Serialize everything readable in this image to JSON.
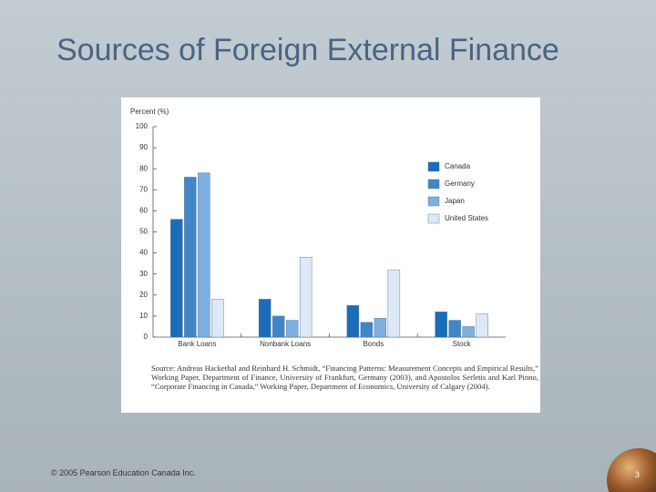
{
  "title": "Sources of Foreign External Finance",
  "footer": "© 2005 Pearson Education Canada Inc.",
  "page_number": "3",
  "chart_data": {
    "type": "bar",
    "y_label": "Percent (%)",
    "categories": [
      "Bank Loans",
      "Nonbank Loans",
      "Bonds",
      "Stock"
    ],
    "series": [
      {
        "name": "Canada",
        "color": "#1b6db8",
        "values": [
          56,
          18,
          15,
          12
        ]
      },
      {
        "name": "Germany",
        "color": "#3f87c8",
        "values": [
          76,
          10,
          7,
          8
        ]
      },
      {
        "name": "Japan",
        "color": "#7db0e0",
        "values": [
          78,
          8,
          9,
          5
        ]
      },
      {
        "name": "United States",
        "color": "#dde9f6",
        "values": [
          18,
          38,
          32,
          11
        ]
      }
    ],
    "ylim": [
      0,
      100
    ],
    "yticks": [
      0,
      10,
      20,
      30,
      40,
      50,
      60,
      70,
      80,
      90,
      100
    ],
    "grid": false,
    "legend": "right",
    "source": "Source: Andreas Hackethal and Reinhard H. Schmidt, “Financing Patterns: Measurement Concepts and Empirical Results,” Working Paper, Department of Finance, University of Frankfurt, Germany (2003), and Apostolos Serletis and Karl Pinno, “Corporate Financing in Canada,” Working Paper, Department of Economics, University of Calgary (2004)."
  }
}
